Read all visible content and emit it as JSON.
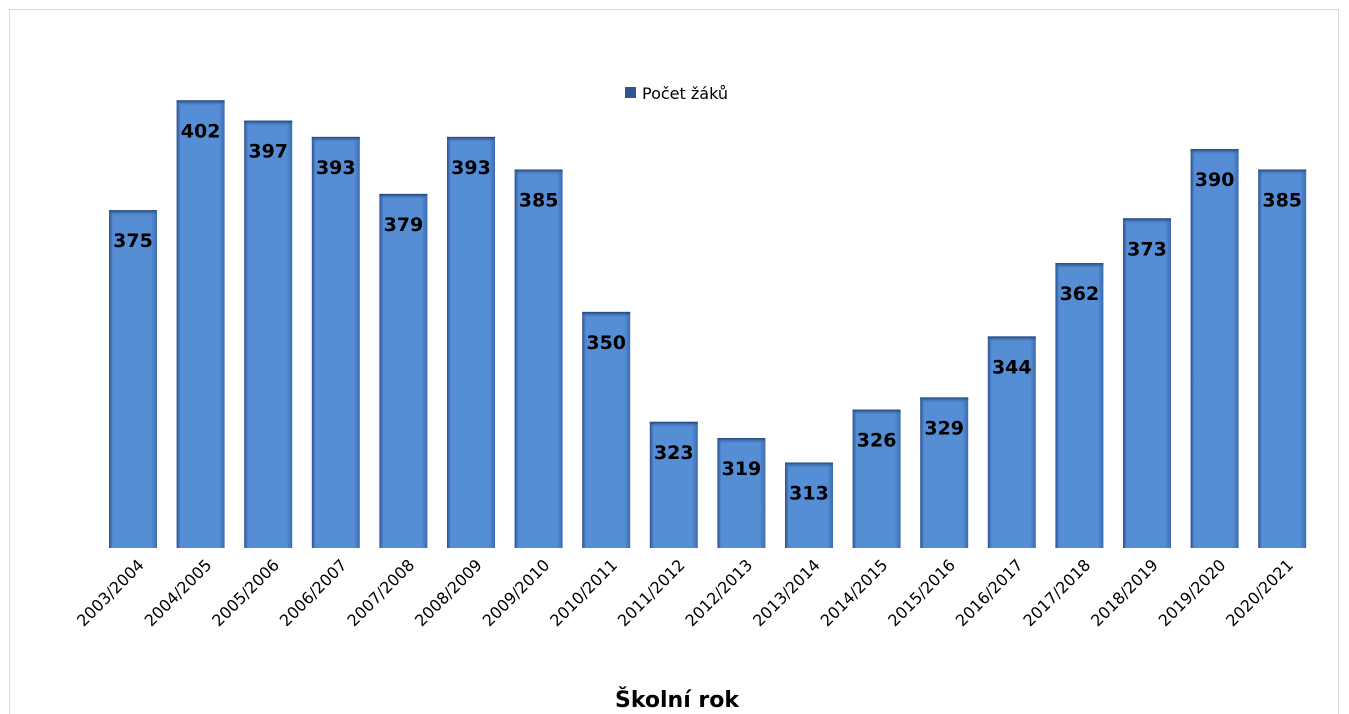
{
  "chart_data": {
    "type": "bar",
    "categories": [
      "2003/2004",
      "2004/2005",
      "2005/2006",
      "2006/2007",
      "2007/2008",
      "2008/2009",
      "2009/2010",
      "2010/2011",
      "2011/2012",
      "2012/2013",
      "2013/2014",
      "2014/2015",
      "2015/2016",
      "2016/2017",
      "2017/2018",
      "2018/2019",
      "2019/2020",
      "2020/2021"
    ],
    "series": [
      {
        "name": "Počet žáků",
        "values": [
          375,
          402,
          397,
          393,
          379,
          393,
          385,
          350,
          323,
          319,
          313,
          326,
          329,
          344,
          362,
          373,
          390,
          385
        ]
      }
    ],
    "xlabel": "Školní rok",
    "ylabel": "",
    "ylim": [
      300,
      410
    ],
    "grid": false,
    "legend": "top-center",
    "bar_color": "#558ed5",
    "bar_edge_color": "#2f5597"
  }
}
